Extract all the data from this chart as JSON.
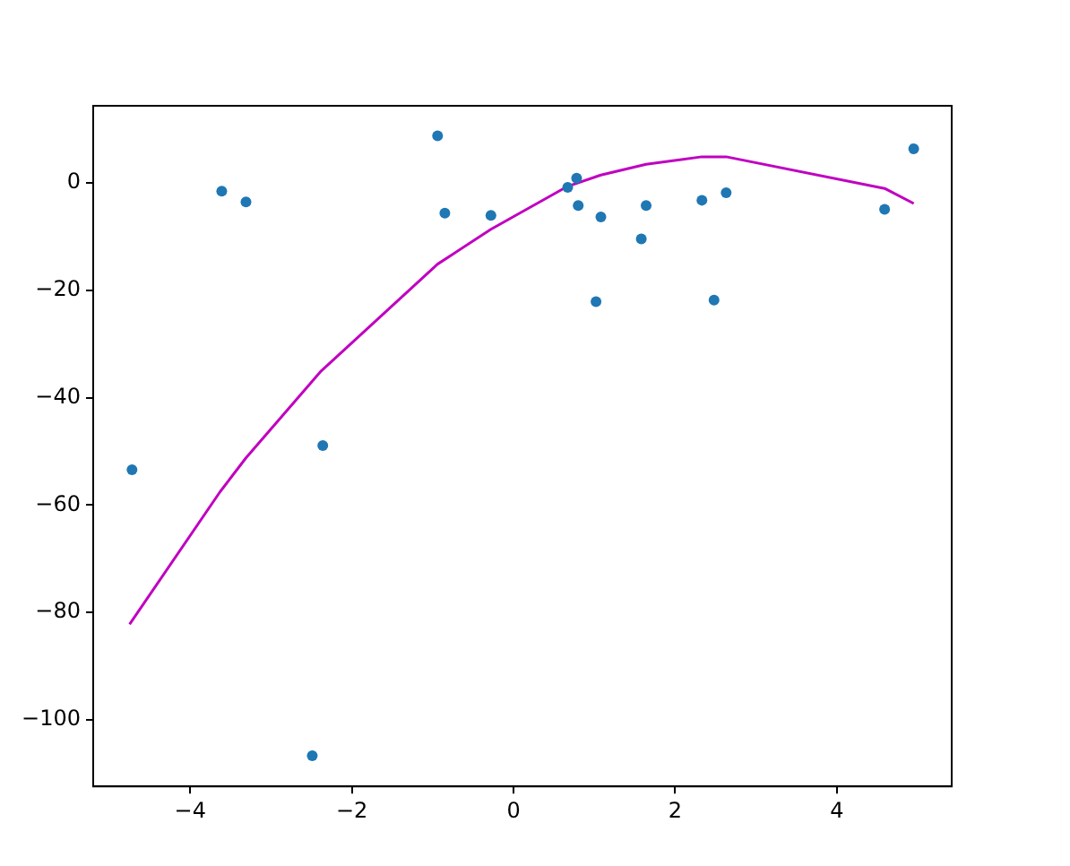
{
  "chart_data": {
    "type": "scatter",
    "xlim": [
      -5.2,
      5.42
    ],
    "xticks": [
      -4,
      -2,
      0,
      2,
      4
    ],
    "ylim": [
      -112.4,
      14.4
    ],
    "yticks": [
      -100,
      -80,
      -60,
      -40,
      -20,
      0
    ],
    "grid": false,
    "legend": false,
    "marker": "circle",
    "series": [
      {
        "type": "scatter",
        "color": "#1f77b4",
        "x": [
          -4.72,
          -3.61,
          -3.31,
          -2.36,
          -2.49,
          -0.94,
          -0.85,
          -0.28,
          0.67,
          0.78,
          0.8,
          1.08,
          1.02,
          1.58,
          1.64,
          2.33,
          2.63,
          2.48,
          4.59,
          4.95
        ],
        "values": [
          -53.4,
          -1.5,
          -3.5,
          -48.9,
          -106.7,
          8.8,
          -5.6,
          -6.0,
          -0.8,
          0.9,
          -4.2,
          -6.3,
          -22.1,
          -10.4,
          -4.2,
          -3.2,
          -1.8,
          -21.8,
          -4.9,
          6.4
        ]
      },
      {
        "type": "line",
        "color": "#c000c0",
        "marker": "none",
        "line_style": "solid",
        "x": [
          -4.75,
          -3.63,
          -3.31,
          -2.38,
          -0.94,
          -0.28,
          0.67,
          1.08,
          1.64,
          2.33,
          2.63,
          4.59,
          4.95
        ],
        "values": [
          -82.2,
          -57.5,
          -51.2,
          -35.0,
          -15.1,
          -8.6,
          -0.6,
          1.5,
          3.5,
          4.9,
          4.9,
          -1.0,
          -3.8
        ]
      }
    ]
  }
}
